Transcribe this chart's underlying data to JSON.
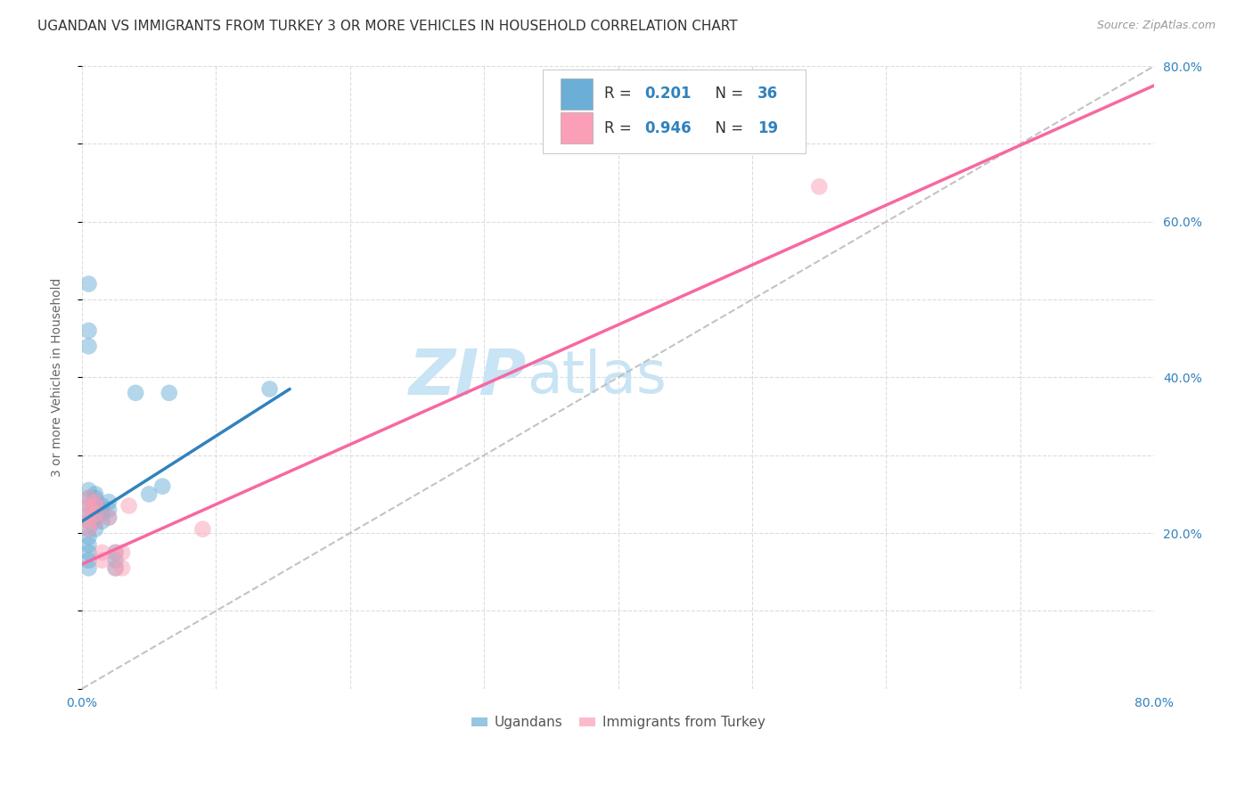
{
  "title": "UGANDAN VS IMMIGRANTS FROM TURKEY 3 OR MORE VEHICLES IN HOUSEHOLD CORRELATION CHART",
  "source": "Source: ZipAtlas.com",
  "ylabel": "3 or more Vehicles in Household",
  "watermark": "ZIPatlas",
  "xlim": [
    0.0,
    0.8
  ],
  "ylim": [
    0.0,
    0.8
  ],
  "xticks": [
    0.0,
    0.1,
    0.2,
    0.3,
    0.4,
    0.5,
    0.6,
    0.7,
    0.8
  ],
  "yticks": [
    0.0,
    0.1,
    0.2,
    0.3,
    0.4,
    0.5,
    0.6,
    0.7,
    0.8
  ],
  "xticklabels": [
    "0.0%",
    "",
    "",
    "",
    "",
    "",
    "",
    "",
    "80.0%"
  ],
  "yticklabels_right": [
    "",
    "",
    "20.0%",
    "",
    "40.0%",
    "",
    "60.0%",
    "",
    "80.0%"
  ],
  "color_blue": "#6baed6",
  "color_pink": "#fa9fb5",
  "color_blue_line": "#3182bd",
  "color_pink_line": "#f768a1",
  "color_dashed": "#bdbdbd",
  "ugandan_points": [
    [
      0.005,
      0.185
    ],
    [
      0.005,
      0.165
    ],
    [
      0.005,
      0.175
    ],
    [
      0.005,
      0.195
    ],
    [
      0.005,
      0.205
    ],
    [
      0.005,
      0.215
    ],
    [
      0.005,
      0.225
    ],
    [
      0.005,
      0.235
    ],
    [
      0.005,
      0.245
    ],
    [
      0.005,
      0.255
    ],
    [
      0.01,
      0.22
    ],
    [
      0.01,
      0.23
    ],
    [
      0.01,
      0.24
    ],
    [
      0.01,
      0.25
    ],
    [
      0.01,
      0.245
    ],
    [
      0.01,
      0.235
    ],
    [
      0.01,
      0.215
    ],
    [
      0.01,
      0.205
    ],
    [
      0.015,
      0.235
    ],
    [
      0.015,
      0.225
    ],
    [
      0.015,
      0.215
    ],
    [
      0.02,
      0.24
    ],
    [
      0.02,
      0.23
    ],
    [
      0.02,
      0.22
    ],
    [
      0.025,
      0.175
    ],
    [
      0.025,
      0.165
    ],
    [
      0.025,
      0.155
    ],
    [
      0.04,
      0.38
    ],
    [
      0.06,
      0.26
    ],
    [
      0.05,
      0.25
    ],
    [
      0.065,
      0.38
    ],
    [
      0.005,
      0.52
    ],
    [
      0.005,
      0.46
    ],
    [
      0.005,
      0.44
    ],
    [
      0.14,
      0.385
    ],
    [
      0.005,
      0.155
    ]
  ],
  "turkey_points": [
    [
      0.005,
      0.245
    ],
    [
      0.005,
      0.235
    ],
    [
      0.005,
      0.225
    ],
    [
      0.005,
      0.215
    ],
    [
      0.005,
      0.205
    ],
    [
      0.01,
      0.24
    ],
    [
      0.01,
      0.235
    ],
    [
      0.01,
      0.225
    ],
    [
      0.01,
      0.215
    ],
    [
      0.015,
      0.175
    ],
    [
      0.015,
      0.165
    ],
    [
      0.02,
      0.22
    ],
    [
      0.025,
      0.175
    ],
    [
      0.025,
      0.155
    ],
    [
      0.03,
      0.175
    ],
    [
      0.03,
      0.155
    ],
    [
      0.09,
      0.205
    ],
    [
      0.035,
      0.235
    ],
    [
      0.55,
      0.645
    ]
  ],
  "ugandan_line_x": [
    0.0,
    0.155
  ],
  "ugandan_line_y": [
    0.215,
    0.385
  ],
  "turkey_line_x": [
    0.0,
    0.8
  ],
  "turkey_line_y": [
    0.16,
    0.775
  ],
  "dashed_line_x": [
    0.0,
    0.8
  ],
  "dashed_line_y": [
    0.0,
    0.8
  ],
  "grid_color": "#d9d9d9",
  "bg_color": "#ffffff",
  "title_fontsize": 11,
  "axis_label_fontsize": 10,
  "tick_fontsize": 10,
  "watermark_fontsize": 52,
  "watermark_color": "#c8e4f5",
  "right_tick_color": "#3182bd",
  "bottom_tick_color": "#3182bd",
  "legend_R1": "0.201",
  "legend_N1": "36",
  "legend_R2": "0.946",
  "legend_N2": "19"
}
